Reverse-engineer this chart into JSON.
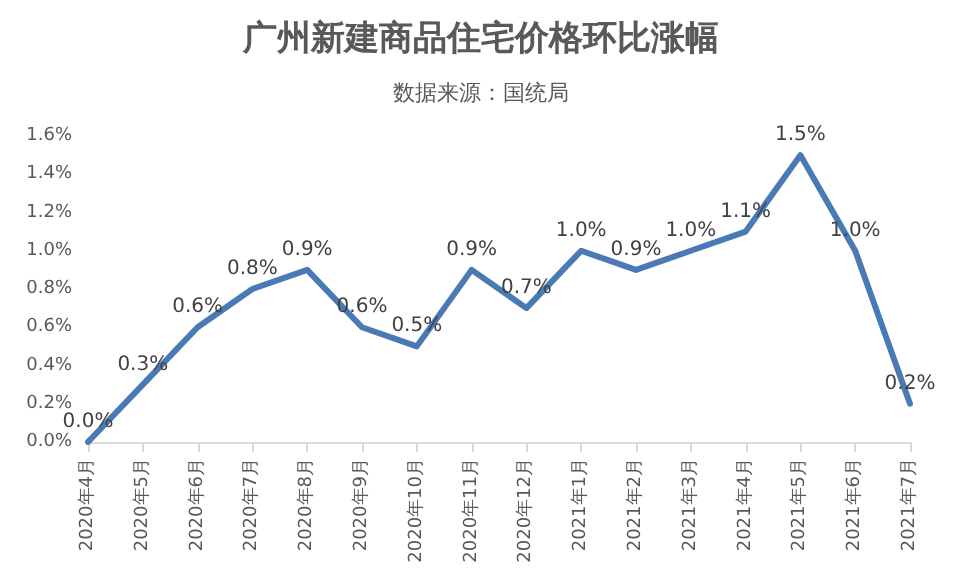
{
  "chart_data": {
    "type": "line",
    "title": "广州新建商品住宅价格环比涨幅",
    "subtitle": "数据来源：国统局",
    "categories": [
      "2020年4月",
      "2020年5月",
      "2020年6月",
      "2020年7月",
      "2020年8月",
      "2020年9月",
      "2020年10月",
      "2020年11月",
      "2020年12月",
      "2021年1月",
      "2021年2月",
      "2021年3月",
      "2021年4月",
      "2021年5月",
      "2021年6月",
      "2021年7月"
    ],
    "series": [
      {
        "color": "#4a7ab5",
        "values": [
          0.0,
          0.3,
          0.6,
          0.8,
          0.9,
          0.6,
          0.5,
          0.9,
          0.7,
          1.0,
          0.9,
          1.0,
          1.1,
          1.5,
          1.0,
          0.2
        ],
        "value_labels": [
          "0.0%",
          "0.3%",
          "0.6%",
          "0.8%",
          "0.9%",
          "0.6%",
          "0.5%",
          "0.9%",
          "0.7%",
          "1.0%",
          "0.9%",
          "1.0%",
          "1.1%",
          "1.5%",
          "1.0%",
          "0.2%"
        ]
      }
    ],
    "ylim": [
      0,
      1.6
    ],
    "yticks": [
      {
        "value": 0,
        "label": "0.0%"
      },
      {
        "value": 0.2,
        "label": "0.2%"
      },
      {
        "value": 0.4,
        "label": "0.4%"
      },
      {
        "value": 0.6,
        "label": "0.6%"
      },
      {
        "value": 0.8,
        "label": "0.8%"
      },
      {
        "value": 1.0,
        "label": "1.0%"
      },
      {
        "value": 1.2,
        "label": "1.2%"
      },
      {
        "value": 1.4,
        "label": "1.4%"
      },
      {
        "value": 1.6,
        "label": "1.6%"
      }
    ],
    "grid": false,
    "marker": "none",
    "line_style": "solid"
  }
}
